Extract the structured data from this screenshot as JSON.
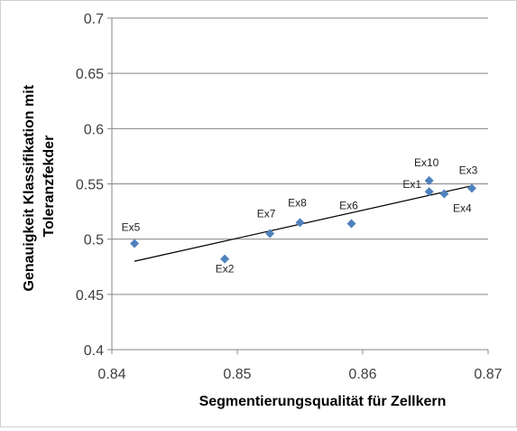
{
  "chart_data": {
    "type": "scatter",
    "title": "",
    "xlabel": "Segmentierungsqualität  für Zellkern",
    "ylabel_lines": [
      "Genauigkeit  Klassifikation  mit",
      "Toleranzfekder"
    ],
    "xlim": [
      0.84,
      0.87
    ],
    "ylim": [
      0.4,
      0.7
    ],
    "x_ticks": [
      "0.84",
      "0.85",
      "0.86",
      "0.87"
    ],
    "y_ticks": [
      "0.4",
      "0.45",
      "0.5",
      "0.55",
      "0.6",
      "0.65",
      "0.7"
    ],
    "grid": "horizontal",
    "legend": "none",
    "marker_color": "#4F81BD",
    "trendline": {
      "type": "linear",
      "x_start": 0.8418,
      "y_start": 0.48,
      "x_end": 0.8686,
      "y_end": 0.548,
      "color": "#000000"
    },
    "points": [
      {
        "label": "Ex5",
        "x": 0.8418,
        "y": 0.496
      },
      {
        "label": "Ex2",
        "x": 0.849,
        "y": 0.482
      },
      {
        "label": "Ex7",
        "x": 0.8526,
        "y": 0.505
      },
      {
        "label": "Ex8",
        "x": 0.855,
        "y": 0.515
      },
      {
        "label": "Ex6",
        "x": 0.8591,
        "y": 0.514
      },
      {
        "label": "Ex1",
        "x": 0.8653,
        "y": 0.543
      },
      {
        "label": "Ex10",
        "x": 0.8653,
        "y": 0.553
      },
      {
        "label": "Ex4",
        "x": 0.8665,
        "y": 0.541
      },
      {
        "label": "Ex3",
        "x": 0.8687,
        "y": 0.546
      }
    ]
  }
}
